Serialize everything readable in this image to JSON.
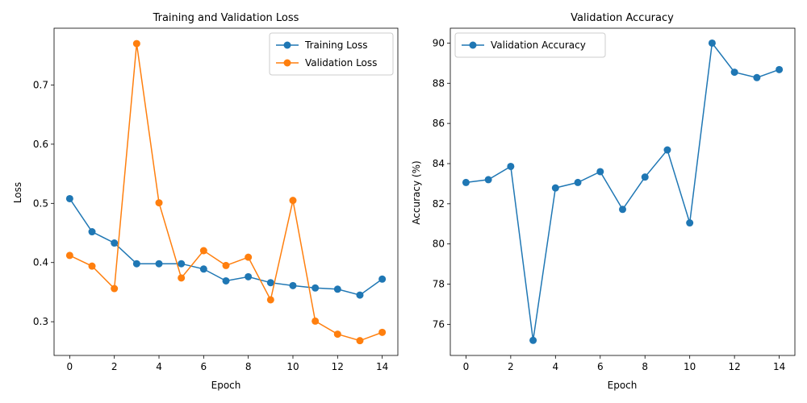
{
  "chart_data": [
    {
      "type": "line",
      "title": "Training and Validation Loss",
      "xlabel": "Epoch",
      "ylabel": "Loss",
      "xlim": [
        -0.7,
        14.7
      ],
      "ylim": [
        0.243,
        0.796
      ],
      "xticks": [
        0,
        2,
        4,
        6,
        8,
        10,
        12,
        14
      ],
      "yticks": [
        0.3,
        0.4,
        0.5,
        0.6,
        0.7
      ],
      "grid": false,
      "legend": "top-right",
      "x": [
        0,
        1,
        2,
        3,
        4,
        5,
        6,
        7,
        8,
        9,
        10,
        11,
        12,
        13,
        14
      ],
      "series": [
        {
          "name": "Training Loss",
          "color": "#1f77b4",
          "values": [
            0.508,
            0.452,
            0.433,
            0.398,
            0.398,
            0.398,
            0.389,
            0.369,
            0.376,
            0.366,
            0.361,
            0.357,
            0.355,
            0.345,
            0.372
          ]
        },
        {
          "name": "Validation Loss",
          "color": "#ff7f0e",
          "values": [
            0.412,
            0.394,
            0.356,
            0.77,
            0.501,
            0.374,
            0.42,
            0.395,
            0.409,
            0.337,
            0.505,
            0.301,
            0.279,
            0.268,
            0.282
          ]
        }
      ]
    },
    {
      "type": "line",
      "title": "Validation Accuracy",
      "xlabel": "Epoch",
      "ylabel": "Accuracy (%)",
      "xlim": [
        -0.7,
        14.7
      ],
      "ylim": [
        74.45,
        90.74
      ],
      "xticks": [
        0,
        2,
        4,
        6,
        8,
        10,
        12,
        14
      ],
      "yticks": [
        76,
        78,
        80,
        82,
        84,
        86,
        88,
        90
      ],
      "grid": false,
      "legend": "top-left",
      "x": [
        0,
        1,
        2,
        3,
        4,
        5,
        6,
        7,
        8,
        9,
        10,
        11,
        12,
        13,
        14
      ],
      "series": [
        {
          "name": "Validation Accuracy",
          "color": "#1f77b4",
          "values": [
            83.06,
            83.2,
            83.86,
            75.2,
            82.79,
            83.06,
            83.6,
            81.72,
            83.33,
            84.68,
            81.05,
            90.0,
            88.55,
            88.28,
            88.68
          ]
        }
      ]
    }
  ]
}
